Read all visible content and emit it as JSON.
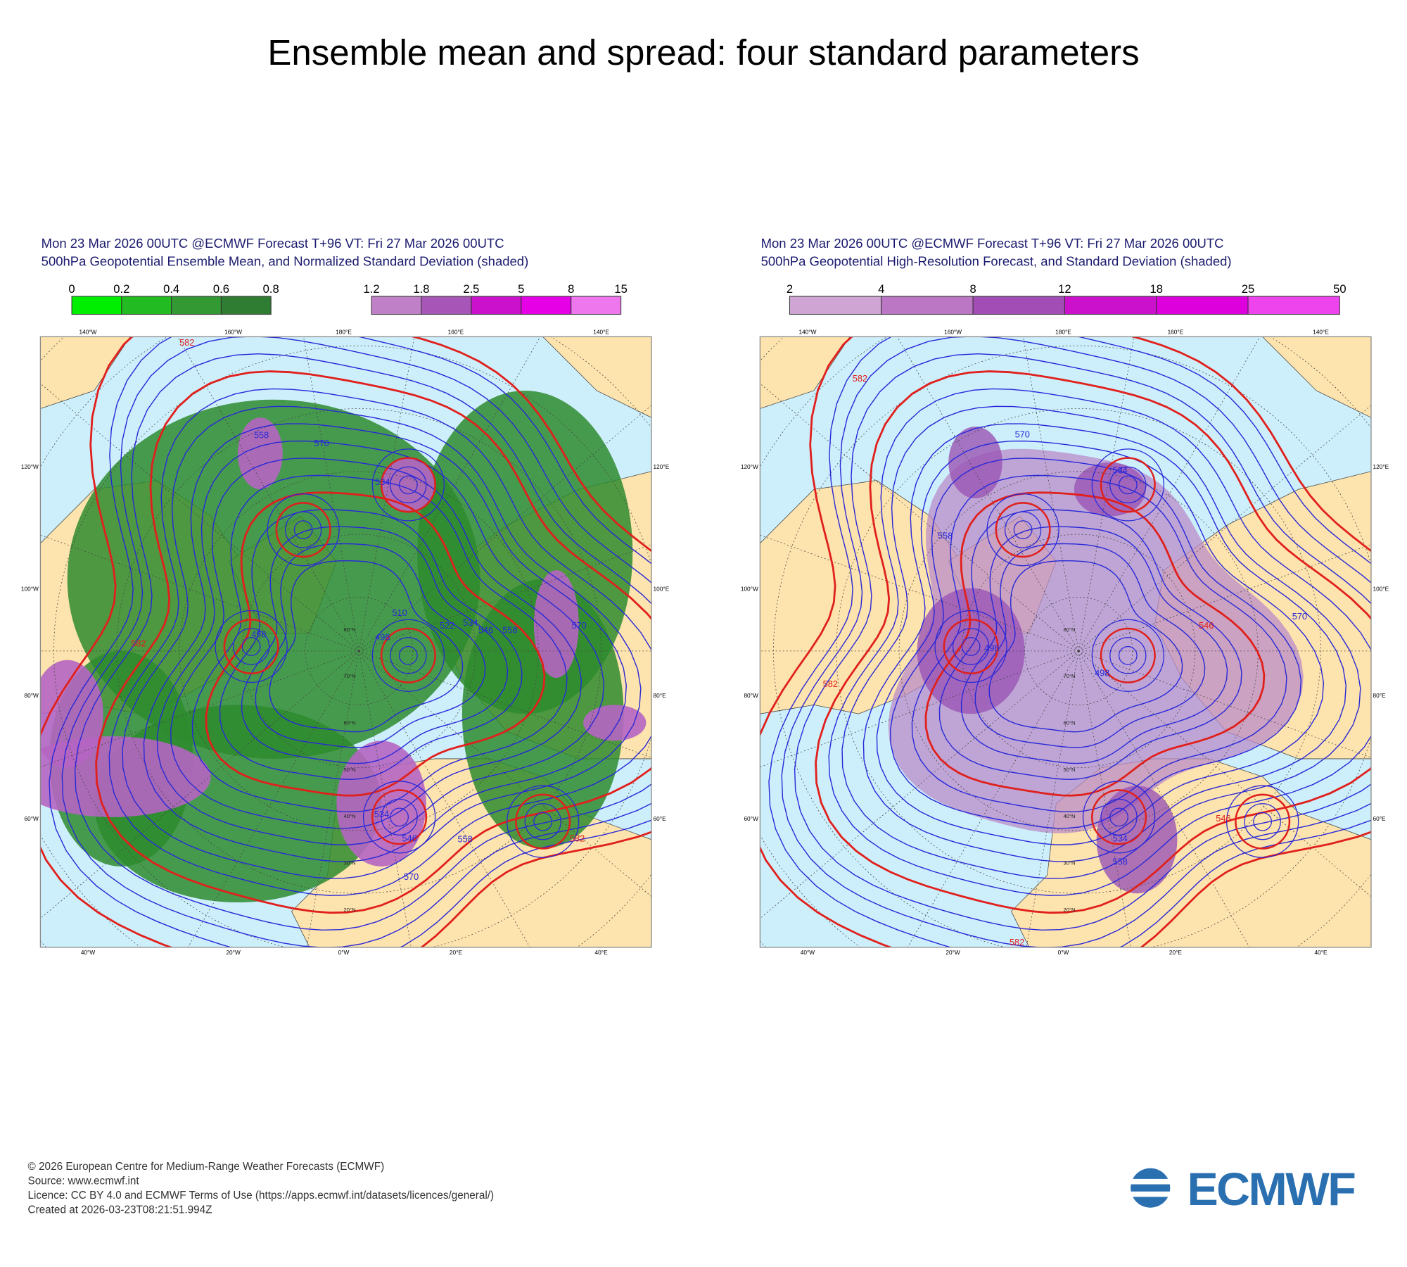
{
  "title": "Ensemble mean and spread: four standard parameters",
  "panels": [
    {
      "header": [
        "Mon 23 Mar 2026 00UTC @ECMWF Forecast T+96 VT: Fri 27 Mar 2026 00UTC",
        "500hPa Geopotential Ensemble Mean, and Normalized Standard Deviation (shaded)"
      ],
      "colorbars": [
        {
          "labels": [
            0,
            0.2,
            0.4,
            0.6,
            0.8
          ],
          "colors": [
            "#00ee00",
            "#22bb22",
            "#339933",
            "#2e7d32"
          ]
        },
        {
          "labels": [
            1.2,
            1.8,
            2.5,
            5,
            8,
            15
          ],
          "colors": [
            "#c080c8",
            "#a855b8",
            "#cc11cc",
            "#e600e6",
            "#ee77ee"
          ]
        }
      ],
      "contour_labels": [
        558,
        570,
        534,
        498,
        498,
        510,
        522,
        534,
        546,
        558,
        570,
        582,
        582,
        534,
        546,
        558,
        570,
        582
      ]
    },
    {
      "header": [
        "Mon 23 Mar 2026 00UTC @ECMWF Forecast T+96 VT: Fri 27 Mar 2026 00UTC",
        "500hPa Geopotential High-Resolution Forecast, and Standard Deviation (shaded)"
      ],
      "colorbars": [
        {
          "labels": [
            2,
            4,
            8,
            12,
            18,
            25,
            50
          ],
          "colors": [
            "#cfa5d4",
            "#bb77c4",
            "#a24db5",
            "#cc11cc",
            "#dd00dd",
            "#ee44ee"
          ]
        }
      ],
      "contour_labels": [
        570,
        534,
        558,
        498,
        498,
        546,
        570,
        558,
        534,
        582,
        582,
        582,
        546
      ]
    }
  ],
  "lon_labels_top": [
    "140°W",
    "160°W",
    "180°E",
    "160°E",
    "140°E"
  ],
  "lon_labels_bottom": [
    "40°W",
    "20°W",
    "0°W",
    "20°E",
    "40°E"
  ],
  "lon_labels_left": [
    "120°W",
    "100°W",
    "80°W",
    "60°W"
  ],
  "lon_labels_right": [
    "120°E",
    "100°E",
    "80°E",
    "60°E"
  ],
  "lat_labels": [
    "20°N",
    "30°N",
    "40°N",
    "50°N",
    "60°N",
    "70°N",
    "80°N"
  ],
  "footer": [
    "© 2026 European Centre for Medium-Range Weather Forecasts (ECMWF)",
    "Source: www.ecmwf.int",
    "Licence: CC BY 4.0 and ECMWF Terms of Use (https://apps.ecmwf.int/datasets/licences/general/)",
    "Created at 2026-03-23T08:21:51.994Z"
  ],
  "logo": "ECMWF"
}
